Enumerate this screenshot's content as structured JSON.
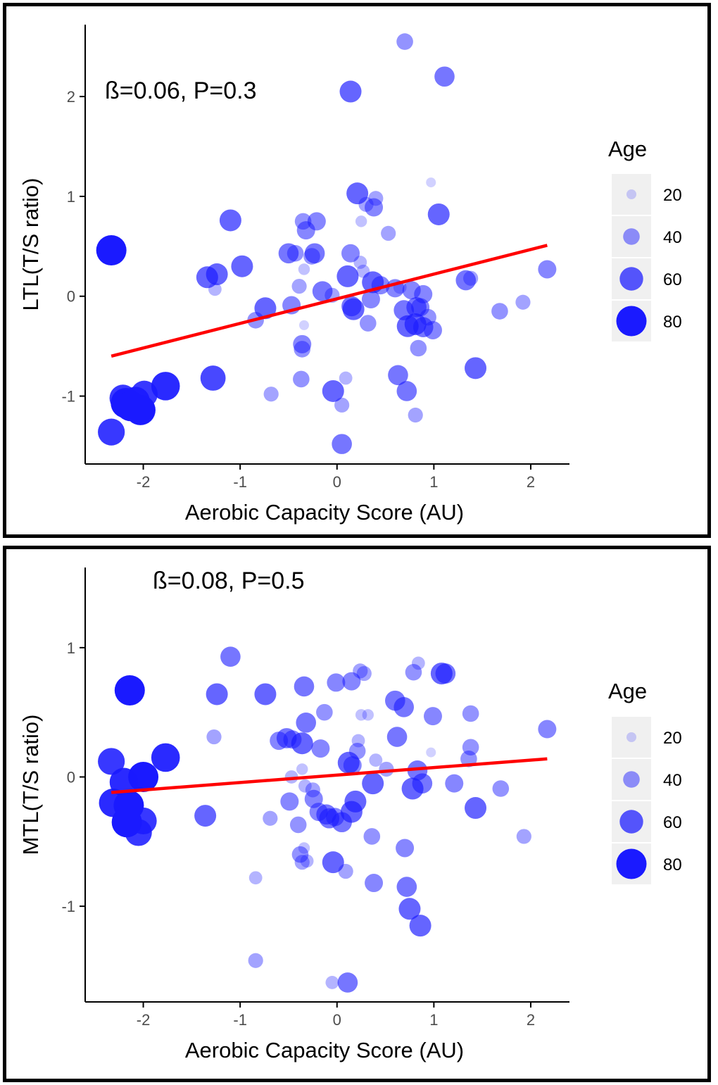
{
  "colors": {
    "point": "#1a1aff",
    "fit_line": "#ff0000",
    "axis": "#000000",
    "tick_text": "#4d4d4d",
    "legend_key_bg": "#f0f0f0"
  },
  "legend": {
    "title": "Age",
    "entries": [
      {
        "label": "20",
        "value": 20
      },
      {
        "label": "40",
        "value": 40
      },
      {
        "label": "60",
        "value": 60
      },
      {
        "label": "80",
        "value": 80
      }
    ]
  },
  "chart_data": [
    {
      "type": "scatter",
      "title": "",
      "annotation": "ß=0.06, P=0.3",
      "xlabel": "Aerobic Capacity Score (AU)",
      "ylabel": "LTL(T/S ratio)",
      "xlim": [
        -2.6,
        2.4
      ],
      "ylim": [
        -1.68,
        2.72
      ],
      "x_ticks": [
        -2,
        -1,
        0,
        1,
        2
      ],
      "x_tick_labels": [
        "-2",
        "-1",
        "0",
        "1",
        "2"
      ],
      "y_ticks": [
        -1,
        0,
        1,
        2
      ],
      "y_tick_labels": [
        "-1",
        "0",
        "1",
        "2"
      ],
      "fit_line": {
        "x": [
          -2.33,
          2.17
        ],
        "y": [
          -0.6,
          0.51
        ]
      },
      "size_variable": "Age",
      "points": [
        {
          "x": 0.7,
          "y": 2.55,
          "age": 40
        },
        {
          "x": 1.11,
          "y": 2.2,
          "age": 50
        },
        {
          "x": 0.14,
          "y": 2.05,
          "age": 55
        },
        {
          "x": -2.33,
          "y": 0.46,
          "age": 80
        },
        {
          "x": 0.97,
          "y": 1.14,
          "age": 20
        },
        {
          "x": 0.21,
          "y": 1.03,
          "age": 55
        },
        {
          "x": 0.4,
          "y": 0.98,
          "age": 35
        },
        {
          "x": 0.3,
          "y": 0.92,
          "age": 35
        },
        {
          "x": 0.38,
          "y": 0.89,
          "age": 45
        },
        {
          "x": 1.05,
          "y": 0.82,
          "age": 55
        },
        {
          "x": -1.1,
          "y": 0.76,
          "age": 55
        },
        {
          "x": -0.35,
          "y": 0.75,
          "age": 40
        },
        {
          "x": -0.21,
          "y": 0.75,
          "age": 45
        },
        {
          "x": 0.25,
          "y": 0.75,
          "age": 25
        },
        {
          "x": -0.32,
          "y": 0.66,
          "age": 45
        },
        {
          "x": 0.53,
          "y": 0.63,
          "age": 35
        },
        {
          "x": -0.5,
          "y": 0.43,
          "age": 50
        },
        {
          "x": -0.43,
          "y": 0.43,
          "age": 40
        },
        {
          "x": -0.23,
          "y": 0.43,
          "age": 50
        },
        {
          "x": -0.26,
          "y": 0.4,
          "age": 40
        },
        {
          "x": 0.14,
          "y": 0.43,
          "age": 45
        },
        {
          "x": 0.24,
          "y": 0.34,
          "age": 30
        },
        {
          "x": -0.98,
          "y": 0.3,
          "age": 55
        },
        {
          "x": -0.34,
          "y": 0.27,
          "age": 25
        },
        {
          "x": 0.27,
          "y": 0.25,
          "age": 30
        },
        {
          "x": -1.34,
          "y": 0.19,
          "age": 55
        },
        {
          "x": -1.24,
          "y": 0.22,
          "age": 55
        },
        {
          "x": 0.11,
          "y": 0.2,
          "age": 55
        },
        {
          "x": -1.26,
          "y": 0.07,
          "age": 30
        },
        {
          "x": -0.39,
          "y": 0.1,
          "age": 35
        },
        {
          "x": -0.15,
          "y": 0.05,
          "age": 50
        },
        {
          "x": -0.05,
          "y": 0.01,
          "age": 35
        },
        {
          "x": 0.37,
          "y": 0.14,
          "age": 55
        },
        {
          "x": 0.45,
          "y": 0.11,
          "age": 45
        },
        {
          "x": 0.6,
          "y": 0.08,
          "age": 45
        },
        {
          "x": 0.77,
          "y": 0.06,
          "age": 45
        },
        {
          "x": 0.65,
          "y": 0.09,
          "age": 30
        },
        {
          "x": 0.89,
          "y": 0.02,
          "age": 45
        },
        {
          "x": 1.33,
          "y": 0.16,
          "age": 50
        },
        {
          "x": 1.38,
          "y": 0.18,
          "age": 35
        },
        {
          "x": 2.17,
          "y": 0.27,
          "age": 45
        },
        {
          "x": 0.15,
          "y": -0.1,
          "age": 50
        },
        {
          "x": 0.17,
          "y": -0.13,
          "age": 55
        },
        {
          "x": 0.35,
          "y": -0.03,
          "age": 45
        },
        {
          "x": -0.74,
          "y": -0.12,
          "age": 55
        },
        {
          "x": -0.47,
          "y": -0.09,
          "age": 45
        },
        {
          "x": -0.84,
          "y": -0.24,
          "age": 40
        },
        {
          "x": -0.34,
          "y": -0.29,
          "age": 20
        },
        {
          "x": 0.32,
          "y": -0.27,
          "age": 40
        },
        {
          "x": 0.69,
          "y": -0.14,
          "age": 50
        },
        {
          "x": 0.82,
          "y": -0.11,
          "age": 50
        },
        {
          "x": 0.86,
          "y": -0.11,
          "age": 45
        },
        {
          "x": 0.94,
          "y": -0.21,
          "age": 40
        },
        {
          "x": 0.73,
          "y": -0.3,
          "age": 55
        },
        {
          "x": 0.81,
          "y": -0.28,
          "age": 55
        },
        {
          "x": 0.89,
          "y": -0.31,
          "age": 50
        },
        {
          "x": 0.99,
          "y": -0.34,
          "age": 45
        },
        {
          "x": 1.68,
          "y": -0.15,
          "age": 40
        },
        {
          "x": 1.92,
          "y": -0.06,
          "age": 35
        },
        {
          "x": -0.36,
          "y": -0.48,
          "age": 45
        },
        {
          "x": -0.36,
          "y": -0.53,
          "age": 40
        },
        {
          "x": 0.84,
          "y": -0.52,
          "age": 40
        },
        {
          "x": 1.43,
          "y": -0.72,
          "age": 55
        },
        {
          "x": -0.37,
          "y": -0.83,
          "age": 40
        },
        {
          "x": 0.09,
          "y": -0.82,
          "age": 30
        },
        {
          "x": 0.63,
          "y": -0.79,
          "age": 50
        },
        {
          "x": -0.68,
          "y": -0.98,
          "age": 35
        },
        {
          "x": -0.04,
          "y": -0.95,
          "age": 55
        },
        {
          "x": 0.72,
          "y": -0.95,
          "age": 50
        },
        {
          "x": 0.05,
          "y": -1.09,
          "age": 35
        },
        {
          "x": 0.81,
          "y": -1.19,
          "age": 35
        },
        {
          "x": -1.28,
          "y": -0.82,
          "age": 65
        },
        {
          "x": -1.77,
          "y": -0.9,
          "age": 75
        },
        {
          "x": -1.99,
          "y": -0.98,
          "age": 70
        },
        {
          "x": -2.08,
          "y": -1.05,
          "age": 75
        },
        {
          "x": -2.18,
          "y": -1.07,
          "age": 80
        },
        {
          "x": -2.21,
          "y": -1.02,
          "age": 70
        },
        {
          "x": -2.13,
          "y": -1.1,
          "age": 80
        },
        {
          "x": -2.03,
          "y": -1.14,
          "age": 80
        },
        {
          "x": -2.33,
          "y": -1.36,
          "age": 70
        },
        {
          "x": 0.05,
          "y": -1.48,
          "age": 50
        }
      ]
    },
    {
      "type": "scatter",
      "title": "",
      "annotation": "ß=0.08, P=0.5",
      "xlabel": "Aerobic Capacity Score (AU)",
      "ylabel": "MTL(T/S ratio)",
      "xlim": [
        -2.6,
        2.4
      ],
      "ylim": [
        -1.74,
        1.62
      ],
      "x_ticks": [
        -2,
        -1,
        0,
        1,
        2
      ],
      "x_tick_labels": [
        "-2",
        "-1",
        "0",
        "1",
        "2"
      ],
      "y_ticks": [
        -1,
        0,
        1
      ],
      "y_tick_labels": [
        "-1",
        "0",
        "1"
      ],
      "fit_line": {
        "x": [
          -2.33,
          2.17
        ],
        "y": [
          -0.12,
          0.14
        ]
      },
      "size_variable": "Age",
      "points": [
        {
          "x": -1.1,
          "y": 0.93,
          "age": 50
        },
        {
          "x": 0.84,
          "y": 0.88,
          "age": 30
        },
        {
          "x": 0.24,
          "y": 0.82,
          "age": 35
        },
        {
          "x": 0.28,
          "y": 0.8,
          "age": 35
        },
        {
          "x": 0.79,
          "y": 0.81,
          "age": 40
        },
        {
          "x": 1.08,
          "y": 0.8,
          "age": 55
        },
        {
          "x": 1.12,
          "y": 0.8,
          "age": 50
        },
        {
          "x": -0.01,
          "y": 0.73,
          "age": 45
        },
        {
          "x": 0.15,
          "y": 0.74,
          "age": 45
        },
        {
          "x": -0.34,
          "y": 0.7,
          "age": 50
        },
        {
          "x": -2.14,
          "y": 0.67,
          "age": 80
        },
        {
          "x": -1.24,
          "y": 0.64,
          "age": 55
        },
        {
          "x": -0.74,
          "y": 0.64,
          "age": 55
        },
        {
          "x": 0.6,
          "y": 0.59,
          "age": 50
        },
        {
          "x": 0.69,
          "y": 0.54,
          "age": 50
        },
        {
          "x": -0.13,
          "y": 0.5,
          "age": 40
        },
        {
          "x": 0.25,
          "y": 0.48,
          "age": 25
        },
        {
          "x": 0.32,
          "y": 0.48,
          "age": 25
        },
        {
          "x": 1.38,
          "y": 0.49,
          "age": 40
        },
        {
          "x": 0.99,
          "y": 0.47,
          "age": 45
        },
        {
          "x": -0.32,
          "y": 0.42,
          "age": 50
        },
        {
          "x": 2.17,
          "y": 0.37,
          "age": 45
        },
        {
          "x": -1.27,
          "y": 0.31,
          "age": 35
        },
        {
          "x": -0.6,
          "y": 0.28,
          "age": 45
        },
        {
          "x": -0.52,
          "y": 0.3,
          "age": 50
        },
        {
          "x": -0.46,
          "y": 0.29,
          "age": 45
        },
        {
          "x": -0.36,
          "y": 0.26,
          "age": 55
        },
        {
          "x": 0.62,
          "y": 0.31,
          "age": 50
        },
        {
          "x": 0.22,
          "y": 0.28,
          "age": 30
        },
        {
          "x": -0.17,
          "y": 0.22,
          "age": 45
        },
        {
          "x": 0.21,
          "y": 0.2,
          "age": 40
        },
        {
          "x": 1.38,
          "y": 0.23,
          "age": 40
        },
        {
          "x": 0.97,
          "y": 0.19,
          "age": 20
        },
        {
          "x": -1.77,
          "y": 0.15,
          "age": 75
        },
        {
          "x": 1.36,
          "y": 0.14,
          "age": 40
        },
        {
          "x": 0.4,
          "y": 0.13,
          "age": 30
        },
        {
          "x": -2.33,
          "y": 0.12,
          "age": 70
        },
        {
          "x": 0.12,
          "y": 0.11,
          "age": 55
        },
        {
          "x": 0.16,
          "y": 0.09,
          "age": 45
        },
        {
          "x": 0.51,
          "y": 0.06,
          "age": 35
        },
        {
          "x": 0.83,
          "y": 0.05,
          "age": 50
        },
        {
          "x": -2.0,
          "y": 0.0,
          "age": 80
        },
        {
          "x": -0.47,
          "y": 0.0,
          "age": 30
        },
        {
          "x": -0.36,
          "y": 0.06,
          "age": 25
        },
        {
          "x": -2.2,
          "y": -0.04,
          "age": 75
        },
        {
          "x": 0.37,
          "y": -0.05,
          "age": 55
        },
        {
          "x": 0.78,
          "y": -0.09,
          "age": 55
        },
        {
          "x": 0.88,
          "y": -0.05,
          "age": 50
        },
        {
          "x": 1.21,
          "y": -0.05,
          "age": 45
        },
        {
          "x": 1.69,
          "y": -0.09,
          "age": 40
        },
        {
          "x": -0.25,
          "y": -0.1,
          "age": 35
        },
        {
          "x": -0.33,
          "y": -0.07,
          "age": 30
        },
        {
          "x": -0.24,
          "y": -0.17,
          "age": 45
        },
        {
          "x": 0.19,
          "y": -0.19,
          "age": 55
        },
        {
          "x": -0.49,
          "y": -0.19,
          "age": 45
        },
        {
          "x": -2.31,
          "y": -0.2,
          "age": 75
        },
        {
          "x": -2.15,
          "y": -0.22,
          "age": 80
        },
        {
          "x": -0.19,
          "y": -0.27,
          "age": 45
        },
        {
          "x": -0.11,
          "y": -0.29,
          "age": 50
        },
        {
          "x": 0.15,
          "y": -0.27,
          "age": 55
        },
        {
          "x": -0.02,
          "y": -0.31,
          "age": 45
        },
        {
          "x": -0.08,
          "y": -0.32,
          "age": 50
        },
        {
          "x": 0.05,
          "y": -0.35,
          "age": 50
        },
        {
          "x": -1.36,
          "y": -0.3,
          "age": 55
        },
        {
          "x": -0.69,
          "y": -0.32,
          "age": 35
        },
        {
          "x": -2.0,
          "y": -0.34,
          "age": 70
        },
        {
          "x": -2.17,
          "y": -0.35,
          "age": 80
        },
        {
          "x": -0.4,
          "y": -0.37,
          "age": 40
        },
        {
          "x": 1.43,
          "y": -0.24,
          "age": 55
        },
        {
          "x": -2.05,
          "y": -0.43,
          "age": 70
        },
        {
          "x": 0.36,
          "y": -0.46,
          "age": 40
        },
        {
          "x": 1.93,
          "y": -0.46,
          "age": 35
        },
        {
          "x": -0.34,
          "y": -0.55,
          "age": 25
        },
        {
          "x": 0.7,
          "y": -0.55,
          "age": 45
        },
        {
          "x": -0.38,
          "y": -0.6,
          "age": 40
        },
        {
          "x": -0.31,
          "y": -0.65,
          "age": 30
        },
        {
          "x": -0.36,
          "y": -0.66,
          "age": 35
        },
        {
          "x": -0.04,
          "y": -0.66,
          "age": 55
        },
        {
          "x": 0.09,
          "y": -0.73,
          "age": 35
        },
        {
          "x": -0.84,
          "y": -0.78,
          "age": 30
        },
        {
          "x": 0.38,
          "y": -0.82,
          "age": 45
        },
        {
          "x": 0.72,
          "y": -0.85,
          "age": 50
        },
        {
          "x": 0.75,
          "y": -1.02,
          "age": 55
        },
        {
          "x": 0.86,
          "y": -1.15,
          "age": 55
        },
        {
          "x": -0.84,
          "y": -1.42,
          "age": 35
        },
        {
          "x": -0.05,
          "y": -1.59,
          "age": 30
        },
        {
          "x": 0.11,
          "y": -1.59,
          "age": 50
        }
      ]
    }
  ]
}
